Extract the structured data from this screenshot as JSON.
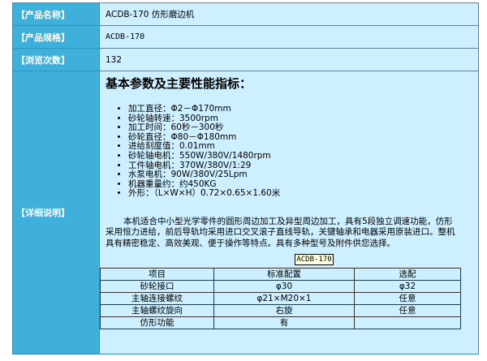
{
  "product": {
    "name_label": "【产品名称】",
    "name_value": "ACDB-170 仿形磨边机",
    "spec_label": "【产品规格】",
    "spec_value": "ACDB-170",
    "views_label": "【浏览次数】",
    "views_value": "132",
    "detail_label": "【详细说明】"
  },
  "detail": {
    "heading": "基本参数及主要性能指标：",
    "params": [
      "加工直径：Φ2－Φ170mm",
      "砂轮轴转速：3500rpm",
      "加工时间：60秒－300秒",
      "砂轮直径：Φ80－Φ180mm",
      "进给刻度值：0.01mm",
      "砂轮轴电机：550W/380V/1480rpm",
      "工件轴电机：370W/380V/1:29",
      "水泵电机：90W/380V/25Lpm",
      "机器重量约：约450KG",
      "外形：（L×W×H）0.72×0.65×1.60米"
    ],
    "description": "本机适合中小型光学零件的圆形周边加工及异型周边加工，具有5段独立调速功能，仿形采用恒力进给，前后导轨均采用进口交叉滚子直线导轨，关键轴承和电器采用原装进口。整机具有精密稳定、高效美观、便于操作等特点。具有多种型号及附件供您选择。",
    "tooltip": "ACDB-170",
    "table": {
      "headers": [
        "项目",
        "标准配置",
        "选配"
      ],
      "rows": [
        [
          "砂轮接口",
          "φ30",
          "φ32"
        ],
        [
          "主轴连接螺纹",
          "φ21×M20×1",
          "任意"
        ],
        [
          "主轴螺纹旋向",
          "右旋",
          "任意"
        ],
        [
          "仿形功能",
          "有",
          ""
        ]
      ]
    }
  }
}
